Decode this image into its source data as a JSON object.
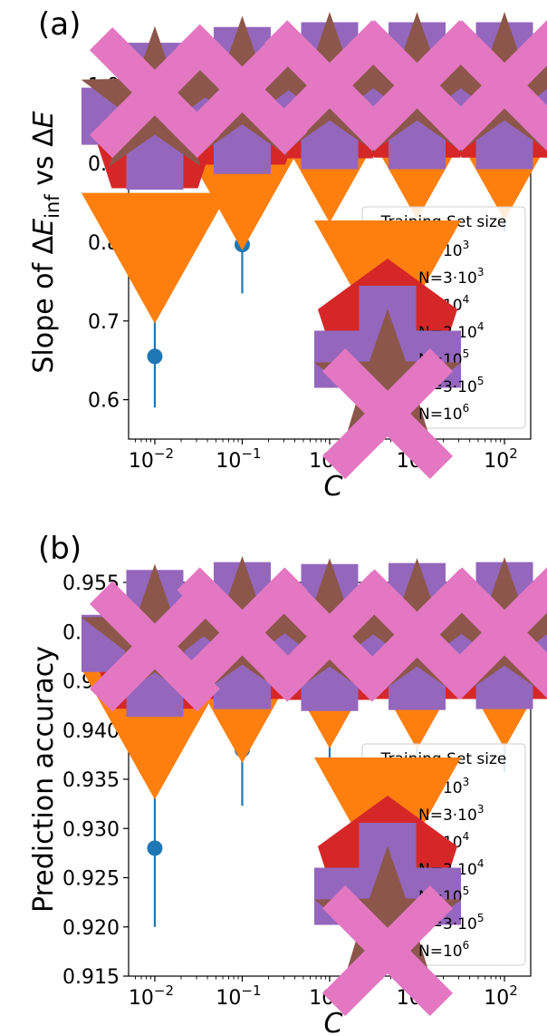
{
  "chart_data": [
    {
      "panel_label": "(a)",
      "type": "scatter",
      "ylabel": {
        "main": "Slope of ΔE",
        "sub": "inf",
        "tail": " vs ΔE"
      },
      "xlabel": "C",
      "x_scale": "log",
      "x": [
        0.01,
        0.1,
        1,
        10,
        100
      ],
      "xticks": [
        {
          "base": "10",
          "exp": "−2"
        },
        {
          "base": "10",
          "exp": "−1"
        },
        {
          "base": "10",
          "exp": "0"
        },
        {
          "base": "10",
          "exp": "1"
        },
        {
          "base": "10",
          "exp": "2"
        }
      ],
      "ylim": [
        0.55,
        1.05
      ],
      "yticks": [
        "0.6",
        "0.7",
        "0.8",
        "0.9",
        "1.0"
      ],
      "legend_title": "Training Set size",
      "legend_position": "lower-right",
      "series": [
        {
          "name": "N=10^3",
          "legend": {
            "pre": "N=10",
            "sup": "3"
          },
          "color": "#1f77b4",
          "marker": "circle",
          "values": [
            0.655,
            0.797,
            0.852,
            0.862,
            0.863
          ],
          "errors": [
            0.065,
            0.062,
            0.056,
            0.05,
            0.05
          ]
        },
        {
          "name": "N=3·10^3",
          "legend": {
            "pre": "N=3·10",
            "sup": "3"
          },
          "color": "#ff7f0e",
          "marker": "triangle-down",
          "values": [
            0.79,
            0.883,
            0.918,
            0.922,
            0.921
          ],
          "errors": [
            0.05,
            0.04,
            0.032,
            0.03,
            0.03
          ]
        },
        {
          "name": "N=10^4",
          "legend": {
            "pre": "N=10",
            "sup": "4"
          },
          "color": "#2ca02c",
          "marker": "square",
          "values": [
            0.897,
            0.951,
            0.965,
            0.967,
            0.967
          ],
          "errors": [
            0.027,
            0.018,
            0.016,
            0.016,
            0.016
          ]
        },
        {
          "name": "N=3·10^4",
          "legend": {
            "pre": "N=3·10",
            "sup": "4"
          },
          "color": "#d62728",
          "marker": "pentagon",
          "values": [
            0.944,
            0.974,
            0.982,
            0.983,
            0.983
          ],
          "errors": [
            0.01,
            0.008,
            0.007,
            0.007,
            0.007
          ]
        },
        {
          "name": "N=10^5",
          "legend": {
            "pre": "N=10",
            "sup": "5"
          },
          "color": "#9467bd",
          "marker": "plus",
          "values": [
            0.96,
            0.98,
            0.986,
            0.986,
            0.986
          ],
          "errors": [
            0.008,
            0.006,
            0.005,
            0.005,
            0.005
          ]
        },
        {
          "name": "N=3·10^5",
          "legend": {
            "pre": "N=3·10",
            "sup": "5"
          },
          "color": "#8c564b",
          "marker": "star",
          "values": [
            0.976,
            0.989,
            0.994,
            0.994,
            0.994
          ],
          "errors": [
            0.006,
            0.004,
            0.003,
            0.003,
            0.003
          ]
        },
        {
          "name": "N=10^6",
          "legend": {
            "pre": "N=10",
            "sup": "6"
          },
          "color": "#e377c2",
          "marker": "x-filled",
          "values": [
            0.99,
            0.994,
            0.999,
            0.999,
            0.999
          ],
          "errors": [
            0.004,
            0.003,
            0.002,
            0.002,
            0.002
          ]
        }
      ]
    },
    {
      "panel_label": "(b)",
      "type": "scatter",
      "ylabel": {
        "main": "Prediction accuracy",
        "sub": "",
        "tail": ""
      },
      "xlabel": "C",
      "x_scale": "log",
      "x": [
        0.01,
        0.1,
        1,
        10,
        100
      ],
      "xticks": [
        {
          "base": "10",
          "exp": "−2"
        },
        {
          "base": "10",
          "exp": "−1"
        },
        {
          "base": "10",
          "exp": "0"
        },
        {
          "base": "10",
          "exp": "1"
        },
        {
          "base": "10",
          "exp": "2"
        }
      ],
      "ylim": [
        0.915,
        0.955
      ],
      "yticks": [
        "0.915",
        "0.920",
        "0.925",
        "0.930",
        "0.935",
        "0.940",
        "0.945",
        "0.950",
        "0.955"
      ],
      "legend_title": "Training Set size",
      "legend_position": "lower-right",
      "series": [
        {
          "name": "N=10^3",
          "legend": {
            "pre": "N=10",
            "sup": "3"
          },
          "color": "#1f77b4",
          "marker": "circle",
          "values": [
            0.928,
            0.938,
            0.9404,
            0.941,
            0.941
          ],
          "errors": [
            0.008,
            0.0057,
            0.0053,
            0.005,
            0.0053
          ]
        },
        {
          "name": "N=3·10^3",
          "legend": {
            "pre": "N=3·10",
            "sup": "3"
          },
          "color": "#ff7f0e",
          "marker": "triangle-down",
          "values": [
            0.9404,
            0.9441,
            0.9456,
            0.9455,
            0.9456
          ],
          "errors": [
            0.003,
            0.0025,
            0.002,
            0.002,
            0.002
          ]
        },
        {
          "name": "N=10^4",
          "legend": {
            "pre": "N=10",
            "sup": "4"
          },
          "color": "#2ca02c",
          "marker": "square",
          "values": [
            0.9461,
            0.9473,
            0.9475,
            0.9476,
            0.9476
          ],
          "errors": [
            0.0025,
            0.0015,
            0.0015,
            0.0015,
            0.0015
          ]
        },
        {
          "name": "N=3·10^4",
          "legend": {
            "pre": "N=3·10",
            "sup": "4"
          },
          "color": "#d62728",
          "marker": "pentagon",
          "values": [
            0.9482,
            0.9492,
            0.9491,
            0.9492,
            0.9492
          ],
          "errors": [
            0.0015,
            0.001,
            0.001,
            0.001,
            0.001
          ]
        },
        {
          "name": "N=10^5",
          "legend": {
            "pre": "N=10",
            "sup": "5"
          },
          "color": "#9467bd",
          "marker": "plus",
          "values": [
            0.9488,
            0.9496,
            0.9494,
            0.9495,
            0.9496
          ],
          "errors": [
            0.0012,
            0.0008,
            0.0008,
            0.0008,
            0.0008
          ]
        },
        {
          "name": "N=3·10^5",
          "legend": {
            "pre": "N=3·10",
            "sup": "5"
          },
          "color": "#8c564b",
          "marker": "star",
          "values": [
            0.949,
            0.9498,
            0.9496,
            0.9496,
            0.9497
          ],
          "errors": [
            0.001,
            0.0008,
            0.0008,
            0.0008,
            0.0008
          ]
        },
        {
          "name": "N=10^6",
          "legend": {
            "pre": "N=10",
            "sup": "6"
          },
          "color": "#e377c2",
          "marker": "x-filled",
          "values": [
            0.9485,
            0.9499,
            0.9495,
            0.9497,
            0.9499
          ],
          "errors": [
            0.001,
            0.0006,
            0.0006,
            0.0006,
            0.0006
          ]
        }
      ]
    }
  ]
}
